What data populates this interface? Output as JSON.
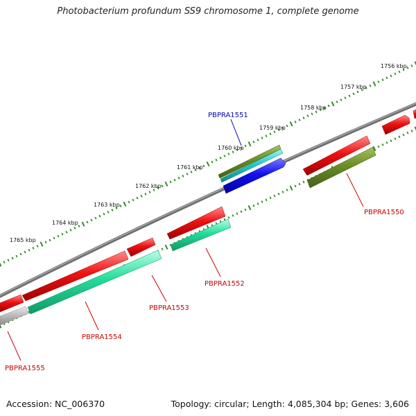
{
  "title": "Photobacterium profundum SS9 chromosome 1, complete genome",
  "footer": {
    "accession": "Accession: NC_006370",
    "summary": "Topology: circular; Length: 4,085,304 bp; Genes: 3,606"
  },
  "colors": {
    "backbone": "#808080",
    "scale_dots": "#2e8b22",
    "red_gene": "#ee1111",
    "mint_gene": "#22dd99",
    "olive_gene": "#6b8e23",
    "cyan_gene": "#22cccc",
    "blue_gene": "#1111ee",
    "grey_gene": "#bdbdbd",
    "label_red": "#cc0000",
    "label_blue": "#0000bb"
  },
  "scale_labels": [
    "1756 kbp",
    "1757 kbp",
    "1758 kbp",
    "1759 kbp",
    "1760 kbp",
    "1761 kbp",
    "1762 kbp",
    "1763 kbp",
    "1764 kbp",
    "1765 kbp"
  ],
  "gene_labels": {
    "g1550": "PBPRA1550",
    "g1551": "PBPRA1551",
    "g1552": "PBPRA1552",
    "g1553": "PBPRA1553",
    "g1554": "PBPRA1554",
    "g1555": "PBPRA1555"
  }
}
